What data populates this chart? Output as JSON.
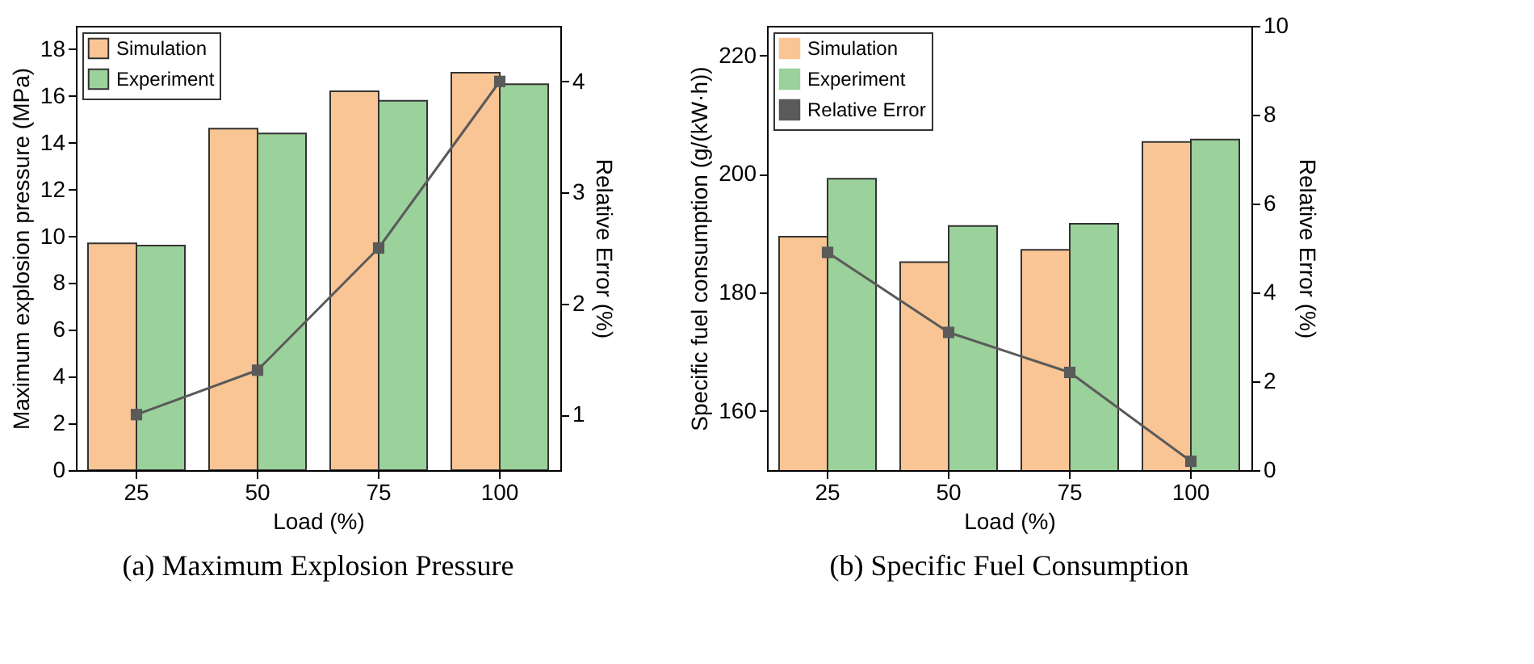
{
  "chart_data": [
    {
      "type": "bar",
      "title": "(a) Maximum Explosion Pressure",
      "xlabel": "Load (%)",
      "ylabel": "Maximum explosion pressure (MPa)",
      "y2label": "Relative Error (%)",
      "categories": [
        "25",
        "50",
        "75",
        "100"
      ],
      "series": [
        {
          "name": "Simulation",
          "color": "#f9c594",
          "values": [
            9.7,
            14.6,
            16.2,
            17.0
          ]
        },
        {
          "name": "Experiment",
          "color": "#9bd19a",
          "values": [
            9.6,
            14.4,
            15.8,
            16.5
          ]
        },
        {
          "type": "line",
          "axis": "y2",
          "color": "#5a5a5a",
          "marker": "square",
          "values": [
            1.0,
            1.4,
            2.5,
            4.0
          ]
        }
      ],
      "ylim": [
        0,
        19
      ],
      "yticks": [
        0,
        2,
        4,
        6,
        8,
        10,
        12,
        14,
        16,
        18
      ],
      "y2lim": [
        0.5,
        4.5
      ],
      "y2ticks": [
        1,
        2,
        3,
        4
      ],
      "grid": false,
      "legend": "top left"
    },
    {
      "type": "bar",
      "title": "(b) Specific Fuel Consumption",
      "xlabel": "Load (%)",
      "ylabel": "Specific fuel consumption (g/(kW·h))",
      "y2label": "Relative Error (%)",
      "categories": [
        "25",
        "50",
        "75",
        "100"
      ],
      "series": [
        {
          "name": "Simulation",
          "color": "#f9c594",
          "values": [
            189.4,
            185.1,
            187.2,
            205.4
          ]
        },
        {
          "name": "Experiment",
          "color": "#9bd19a",
          "values": [
            199.2,
            191.2,
            191.6,
            205.8
          ]
        },
        {
          "name": "Relative Error",
          "type": "line",
          "axis": "y2",
          "color": "#5a5a5a",
          "marker": "square",
          "values": [
            4.9,
            3.1,
            2.2,
            0.2
          ]
        }
      ],
      "ylim": [
        150,
        225
      ],
      "yticks": [
        160,
        180,
        200,
        220
      ],
      "y2lim": [
        0,
        10
      ],
      "y2ticks": [
        0,
        2,
        4,
        6,
        8,
        10
      ],
      "grid": false,
      "legend": "top left"
    }
  ]
}
